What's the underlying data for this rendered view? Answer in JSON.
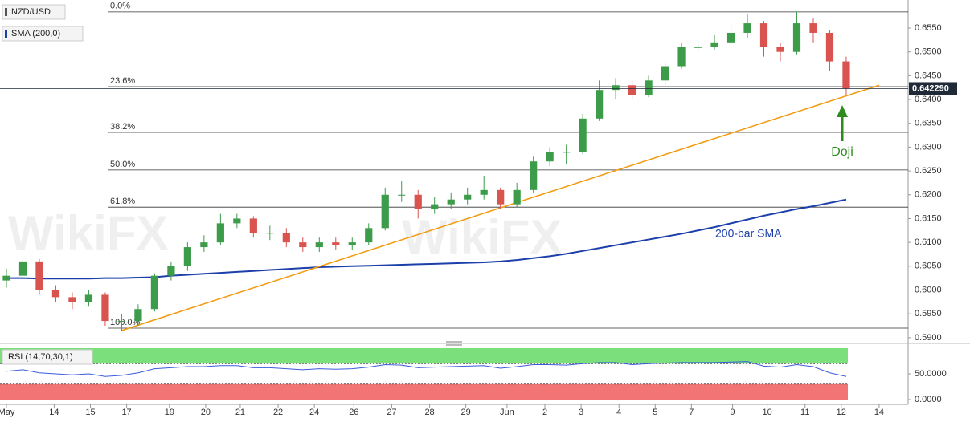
{
  "chart_data": [
    {
      "type": "candlestick",
      "title": "NZD/USD",
      "indicator_label": "SMA (200,0)",
      "watermark": "WikiFX",
      "x": [
        0,
        1,
        2,
        3,
        4,
        5,
        6,
        7,
        8,
        9,
        10,
        11,
        12,
        13,
        14,
        15,
        16,
        17,
        18,
        19,
        20,
        21,
        22,
        23,
        24,
        25,
        26,
        27,
        28,
        29,
        30,
        31,
        32,
        33,
        34,
        35,
        36,
        37,
        38,
        39,
        40,
        41,
        42,
        43,
        44,
        45,
        46,
        47,
        48,
        49,
        50,
        51
      ],
      "open": [
        0.602,
        0.603,
        0.606,
        0.6,
        0.5985,
        0.5975,
        0.599,
        0.5935,
        0.5935,
        0.596,
        0.603,
        0.605,
        0.609,
        0.61,
        0.614,
        0.615,
        0.612,
        0.612,
        0.61,
        0.609,
        0.61,
        0.6095,
        0.61,
        0.613,
        0.62,
        0.62,
        0.617,
        0.618,
        0.619,
        0.62,
        0.621,
        0.618,
        0.621,
        0.627,
        0.629,
        0.629,
        0.636,
        0.642,
        0.643,
        0.641,
        0.644,
        0.647,
        0.651,
        0.651,
        0.652,
        0.654,
        0.656,
        0.651,
        0.65,
        0.656,
        0.654,
        0.648
      ],
      "high": [
        0.6045,
        0.609,
        0.6065,
        0.601,
        0.5995,
        0.6,
        0.5995,
        0.595,
        0.597,
        0.6035,
        0.606,
        0.61,
        0.6115,
        0.616,
        0.616,
        0.6155,
        0.6135,
        0.613,
        0.611,
        0.611,
        0.611,
        0.611,
        0.614,
        0.6215,
        0.623,
        0.621,
        0.6195,
        0.6205,
        0.6215,
        0.624,
        0.6215,
        0.6225,
        0.628,
        0.63,
        0.6305,
        0.637,
        0.644,
        0.6445,
        0.644,
        0.645,
        0.648,
        0.652,
        0.6525,
        0.6535,
        0.656,
        0.658,
        0.6565,
        0.652,
        0.6585,
        0.657,
        0.6545,
        0.649
      ],
      "low": [
        0.6005,
        0.602,
        0.599,
        0.5975,
        0.596,
        0.5965,
        0.5925,
        0.5915,
        0.5925,
        0.5955,
        0.602,
        0.604,
        0.608,
        0.6095,
        0.613,
        0.611,
        0.6105,
        0.609,
        0.608,
        0.608,
        0.6085,
        0.6085,
        0.6095,
        0.6125,
        0.6185,
        0.615,
        0.616,
        0.617,
        0.618,
        0.619,
        0.617,
        0.6175,
        0.6205,
        0.626,
        0.6265,
        0.6285,
        0.6355,
        0.64,
        0.64,
        0.6405,
        0.643,
        0.6465,
        0.65,
        0.6505,
        0.6515,
        0.653,
        0.649,
        0.648,
        0.6495,
        0.652,
        0.646,
        0.641
      ],
      "close": [
        0.603,
        0.606,
        0.6,
        0.5985,
        0.5975,
        0.599,
        0.5935,
        0.5935,
        0.596,
        0.603,
        0.605,
        0.609,
        0.61,
        0.614,
        0.615,
        0.612,
        0.612,
        0.61,
        0.609,
        0.61,
        0.6095,
        0.61,
        0.613,
        0.62,
        0.62,
        0.617,
        0.618,
        0.619,
        0.62,
        0.621,
        0.618,
        0.621,
        0.627,
        0.629,
        0.629,
        0.636,
        0.642,
        0.643,
        0.641,
        0.644,
        0.647,
        0.651,
        0.651,
        0.652,
        0.654,
        0.656,
        0.651,
        0.65,
        0.656,
        0.654,
        0.648,
        0.6423
      ],
      "up_color": "#3c9c4a",
      "down_color": "#d9534f",
      "overlays": [
        {
          "name": "200-bar SMA",
          "color": "#1c3faa",
          "values": [
            0.6025,
            0.6025,
            0.6024,
            0.6024,
            0.6024,
            0.6024,
            0.6025,
            0.6025,
            0.6026,
            0.6027,
            0.603,
            0.6032,
            0.6034,
            0.6036,
            0.6038,
            0.604,
            0.6042,
            0.6044,
            0.6046,
            0.6048,
            0.6049,
            0.605,
            0.6051,
            0.6052,
            0.6053,
            0.6054,
            0.6055,
            0.6056,
            0.6057,
            0.6058,
            0.606,
            0.6063,
            0.6067,
            0.6071,
            0.6076,
            0.6082,
            0.6088,
            0.6094,
            0.61,
            0.6106,
            0.6112,
            0.6118,
            0.6125,
            0.6132,
            0.614,
            0.6148,
            0.6156,
            0.6163,
            0.617,
            0.6176,
            0.6183,
            0.619
          ]
        }
      ],
      "trendline": {
        "color": "#f39c12",
        "x": [
          7,
          53
        ],
        "values": [
          0.5915,
          0.643
        ]
      },
      "fib_levels": [
        {
          "label": "0.0%",
          "value": 0.6584
        },
        {
          "label": "23.6%",
          "value": 0.6427
        },
        {
          "label": "38.2%",
          "value": 0.6331
        },
        {
          "label": "50.0%",
          "value": 0.6252
        },
        {
          "label": "61.8%",
          "value": 0.6174
        },
        {
          "label": "100.0%",
          "value": 0.592
        }
      ],
      "last_price": {
        "value": 0.64229,
        "label": "0.642290"
      },
      "annotation": {
        "text": "Doji",
        "color": "#2e8b1e"
      },
      "xlim": [
        -0.39,
        54.76
      ],
      "xticks": [
        {
          "value": 0,
          "label": "May"
        },
        {
          "value": 2.9,
          "label": "14"
        },
        {
          "value": 5.1,
          "label": "15"
        },
        {
          "value": 7.3,
          "label": "17"
        },
        {
          "value": 9.9,
          "label": "19"
        },
        {
          "value": 12.1,
          "label": "20"
        },
        {
          "value": 14.2,
          "label": "21"
        },
        {
          "value": 16.5,
          "label": "22"
        },
        {
          "value": 18.7,
          "label": "24"
        },
        {
          "value": 21.1,
          "label": "26"
        },
        {
          "value": 23.4,
          "label": "27"
        },
        {
          "value": 25.7,
          "label": "28"
        },
        {
          "value": 27.9,
          "label": "29"
        },
        {
          "value": 30.4,
          "label": "Jun"
        },
        {
          "value": 32.7,
          "label": "2"
        },
        {
          "value": 34.9,
          "label": "3"
        },
        {
          "value": 37.2,
          "label": "4"
        },
        {
          "value": 39.4,
          "label": "5"
        },
        {
          "value": 41.6,
          "label": "7"
        },
        {
          "value": 44.1,
          "label": "9"
        },
        {
          "value": 46.2,
          "label": "10"
        },
        {
          "value": 48.5,
          "label": "11"
        },
        {
          "value": 50.7,
          "label": "12"
        },
        {
          "value": 53.0,
          "label": "14"
        }
      ],
      "ylim": [
        0.5893,
        0.6609
      ],
      "yticks": [
        {
          "value": 0.59,
          "label": "0.5900"
        },
        {
          "value": 0.595,
          "label": "0.5950"
        },
        {
          "value": 0.6,
          "label": "0.6000"
        },
        {
          "value": 0.605,
          "label": "0.6050"
        },
        {
          "value": 0.61,
          "label": "0.6100"
        },
        {
          "value": 0.615,
          "label": "0.6150"
        },
        {
          "value": 0.62,
          "label": "0.6200"
        },
        {
          "value": 0.625,
          "label": "0.6250"
        },
        {
          "value": 0.63,
          "label": "0.6300"
        },
        {
          "value": 0.635,
          "label": "0.6350"
        },
        {
          "value": 0.64,
          "label": "0.6400"
        },
        {
          "value": 0.645,
          "label": "0.6450"
        },
        {
          "value": 0.65,
          "label": "0.6500"
        },
        {
          "value": 0.655,
          "label": "0.6550"
        }
      ]
    },
    {
      "type": "line",
      "title": "RSI (14,70,30,1)",
      "color": "#3b5bdb",
      "overbought": 70,
      "oversold": 30,
      "overbought_color": "#7be07b",
      "oversold_color": "#f27474",
      "x": [
        0,
        1,
        2,
        3,
        4,
        5,
        6,
        7,
        8,
        9,
        10,
        11,
        12,
        13,
        14,
        15,
        16,
        17,
        18,
        19,
        20,
        21,
        22,
        23,
        24,
        25,
        26,
        27,
        28,
        29,
        30,
        31,
        32,
        33,
        34,
        35,
        36,
        37,
        38,
        39,
        40,
        41,
        42,
        43,
        44,
        45,
        46,
        47,
        48,
        49,
        50,
        51
      ],
      "values": [
        55,
        58,
        52,
        50,
        48,
        50,
        45,
        47,
        52,
        60,
        62,
        64,
        64,
        66,
        66,
        62,
        62,
        60,
        58,
        60,
        59,
        60,
        63,
        68,
        67,
        62,
        63,
        64,
        65,
        66,
        61,
        64,
        68,
        68,
        67,
        70,
        72,
        72,
        68,
        70,
        71,
        72,
        72,
        72,
        73,
        74,
        65,
        63,
        68,
        64,
        52,
        45
      ],
      "ylim": [
        0,
        100
      ],
      "yticks": [
        {
          "value": 50,
          "label": "50.0000"
        },
        {
          "value": 0,
          "label": "0.0000"
        }
      ]
    }
  ]
}
